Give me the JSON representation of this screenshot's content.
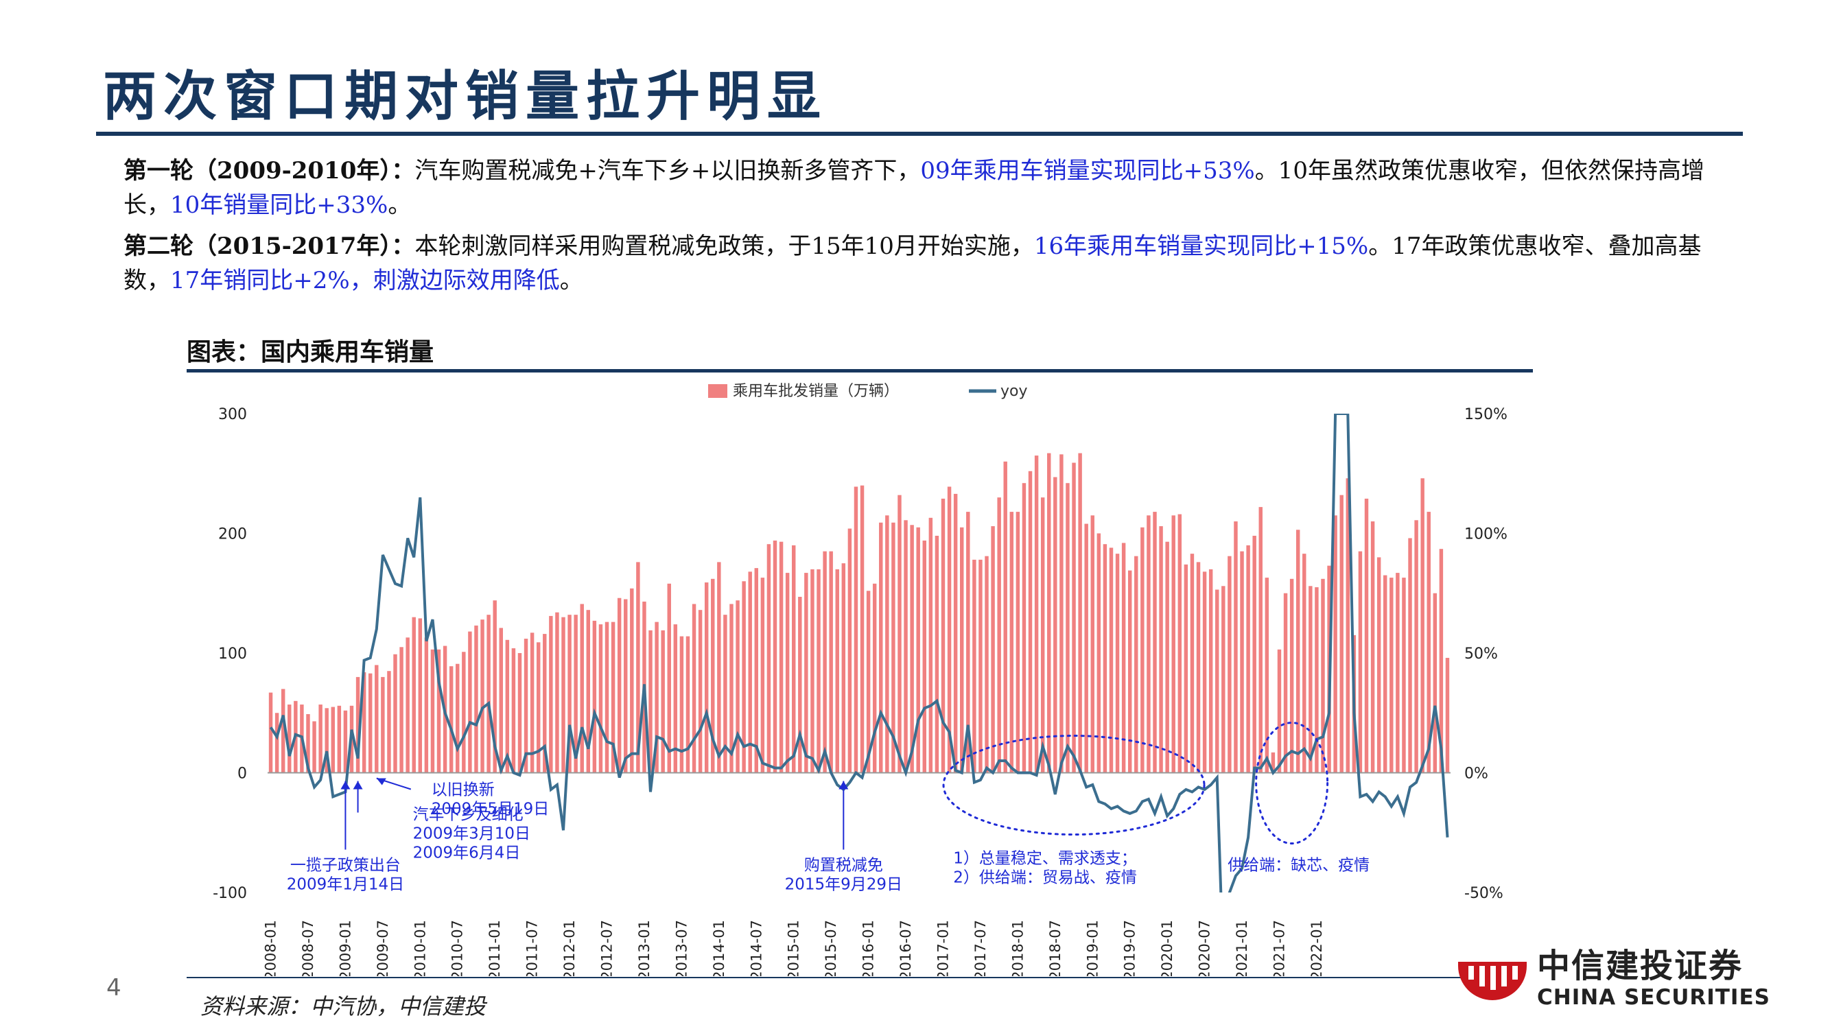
{
  "slide": {
    "title": "两次窗口期对销量拉升明显",
    "page_number": "4",
    "source": "资料来源：中汽协，中信建投"
  },
  "para1": {
    "lead": "第一轮（2009-2010年）：",
    "t1": "汽车购置税减免+汽车下乡+以旧换新多管齐下，",
    "h1": "09年乘用车销量实现同比+53%",
    "t2": "。10年虽然政策优惠收窄，但依然保持高增长，",
    "h2": "10年销量同比+33%",
    "t3": "。"
  },
  "para2": {
    "lead": "第二轮（2015-2017年）：",
    "t1": "本轮刺激同样采用购置税减免政策，于15年10月开始实施，",
    "h1": "16年乘用车销量实现同比+15%",
    "t2": "。17年政策优惠收窄、叠加高基数，",
    "h2": "17年销同比+2%，刺激边际效用降低",
    "t3": "。"
  },
  "figure": {
    "title": "图表：国内乘用车销量"
  },
  "colors": {
    "bar": "#f08080",
    "line": "#3b6e8f",
    "annotation": "#1f2bd6",
    "brand": "#17375e",
    "logo_red": "#c8161d"
  },
  "logo": {
    "cn": "中信建投证券",
    "en": "CHINA SECURITIES"
  },
  "chart_data": {
    "type": "bar+line",
    "start_month": "2008-01",
    "x_tick_labels": [
      "2008-01",
      "2008-07",
      "2009-01",
      "2009-07",
      "2010-01",
      "2010-07",
      "2011-01",
      "2011-07",
      "2012-01",
      "2012-07",
      "2013-01",
      "2013-07",
      "2014-01",
      "2014-07",
      "2015-01",
      "2015-07",
      "2016-01",
      "2016-07",
      "2017-01",
      "2017-07",
      "2018-01",
      "2018-07",
      "2019-01",
      "2019-07",
      "2020-01",
      "2020-07",
      "2021-01",
      "2021-07",
      "2022-01"
    ],
    "y_left": {
      "ticks": [
        300,
        200,
        100,
        0,
        -100
      ],
      "range": [
        -100,
        300
      ]
    },
    "y_right": {
      "ticks": [
        "150%",
        "100%",
        "50%",
        "0%",
        "-50%"
      ],
      "range": [
        -50,
        150
      ]
    },
    "legend": {
      "bar": "乘用车批发销量（万辆）",
      "line": "yoy"
    },
    "legend_position": "top-center",
    "series": [
      {
        "name": "乘用车批发销量（万辆）",
        "type": "bar",
        "axis": "left",
        "values": [
          67,
          50,
          70,
          57,
          60,
          57,
          49,
          43,
          57,
          54,
          55,
          56,
          52,
          56,
          80,
          84,
          83,
          90,
          80,
          85,
          99,
          105,
          113,
          130,
          129,
          113,
          103,
          103,
          106,
          89,
          91,
          101,
          118,
          123,
          128,
          132,
          144,
          121,
          111,
          104,
          100,
          112,
          117,
          109,
          116,
          131,
          134,
          130,
          132,
          132,
          141,
          136,
          127,
          124,
          126,
          126,
          146,
          145,
          154,
          176,
          143,
          119,
          126,
          119,
          158,
          124,
          114,
          114,
          141,
          136,
          159,
          162,
          176,
          132,
          141,
          144,
          160,
          168,
          171,
          163,
          191,
          194,
          193,
          167,
          190,
          147,
          167,
          170,
          170,
          185,
          185,
          170,
          175,
          204,
          239,
          240,
          152,
          158,
          209,
          215,
          209,
          232,
          211,
          207,
          205,
          194,
          213,
          198,
          229,
          239,
          233,
          205,
          218,
          178,
          178,
          181,
          206,
          230,
          260,
          218,
          218,
          242,
          252,
          265,
          230,
          267,
          247,
          266,
          242,
          259,
          267,
          208,
          215,
          200,
          191,
          188,
          183,
          192,
          169,
          181,
          205,
          215,
          218,
          206,
          193,
          215,
          216,
          174,
          183,
          176,
          168,
          170,
          153,
          156,
          181,
          210,
          185,
          190,
          198,
          222,
          163,
          17,
          103,
          150,
          162,
          203,
          183,
          156,
          155,
          162,
          173,
          215,
          232,
          246,
          115,
          185,
          229,
          210,
          180,
          165,
          163,
          167,
          163,
          196,
          211,
          246,
          218,
          150,
          187,
          96
        ]
      },
      {
        "name": "yoy",
        "type": "line",
        "axis": "right",
        "values": [
          19,
          15,
          24,
          7,
          16,
          15,
          2,
          -6,
          -3,
          9,
          -10,
          -9,
          -8,
          18,
          6,
          47,
          48,
          60,
          91,
          85,
          79,
          78,
          98,
          90,
          115,
          55,
          64,
          38,
          25,
          18,
          10,
          15,
          21,
          20,
          27,
          29,
          11,
          1,
          7,
          0,
          -1,
          8,
          8,
          9,
          11,
          -7,
          -5,
          -24,
          20,
          6,
          19,
          10,
          25,
          19,
          13,
          12,
          -2,
          6,
          8,
          8,
          37,
          -8,
          15,
          14,
          9,
          10,
          9,
          10,
          14,
          18,
          25,
          14,
          7,
          11,
          8,
          16,
          11,
          12,
          11,
          4,
          3,
          2,
          2,
          5,
          7,
          16,
          7,
          6,
          1,
          9,
          0,
          -5,
          -7,
          -4,
          0,
          -2,
          7,
          17,
          25,
          20,
          15,
          7,
          0,
          9,
          22,
          27,
          28,
          30,
          21,
          17,
          1,
          0,
          20,
          -4,
          -3,
          2,
          0,
          5,
          5,
          2,
          0,
          0,
          0,
          -1,
          11,
          3,
          -9,
          4,
          11,
          7,
          1,
          -6,
          -5,
          -12,
          -13,
          -15,
          -14,
          -16,
          -17,
          -16,
          -12,
          -11,
          -17,
          -10,
          -18,
          -15,
          -9,
          -7,
          -8,
          -6,
          -7,
          -5,
          -2,
          -80,
          -50,
          -43,
          -40,
          -27,
          2,
          2,
          6,
          0,
          3,
          7,
          9,
          8,
          10,
          6,
          14,
          15,
          25,
          150,
          150,
          150,
          25,
          -10,
          -9,
          -12,
          -8,
          -10,
          -14,
          -10,
          -17,
          -6,
          -4,
          3,
          10,
          28,
          10,
          -27
        ]
      }
    ],
    "annotations": [
      {
        "text": "一揽子政策出台\n2009年1月14日",
        "month_index": 12
      },
      {
        "text": "汽车下乡及细化\n2009年3月10日\n2009年6月4日",
        "month_index": 14
      },
      {
        "text": "以旧换新\n2009年5月19日",
        "month_index": 17
      },
      {
        "text": "购置税减免\n2015年9月29日",
        "month_index": 92
      },
      {
        "text": "1）总量稳定、需求透支；\n2）供给端：贸易战、疫情",
        "month_index": 129
      },
      {
        "text": "供给端：缺芯、疫情",
        "month_index": 164
      }
    ]
  }
}
